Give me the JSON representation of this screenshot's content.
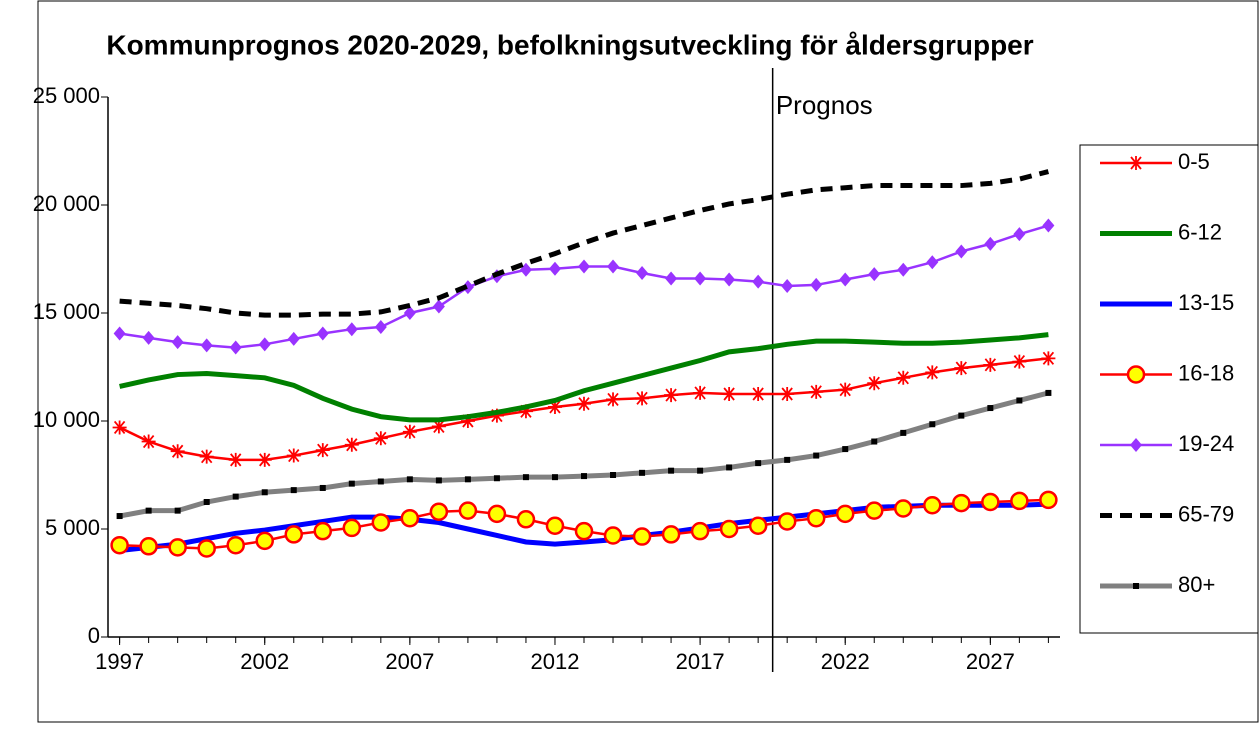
{
  "chart_data": {
    "type": "line",
    "title": "Kommunprognos 2020-2029, befolkningsutveckling för åldersgrupper",
    "x": [
      1997,
      1998,
      1999,
      2000,
      2001,
      2002,
      2003,
      2004,
      2005,
      2006,
      2007,
      2008,
      2009,
      2010,
      2011,
      2012,
      2013,
      2014,
      2015,
      2016,
      2017,
      2018,
      2019,
      2020,
      2021,
      2022,
      2023,
      2024,
      2025,
      2026,
      2027,
      2028,
      2029
    ],
    "xlim": [
      1996.6,
      2029.4
    ],
    "xticks": [
      1997,
      2002,
      2007,
      2012,
      2017,
      2022,
      2027
    ],
    "ylim": [
      0,
      25000
    ],
    "yticks": [
      0,
      {
        "value": 5000,
        "label": "5 000"
      },
      {
        "value": 10000,
        "label": "10 000"
      },
      {
        "value": 15000,
        "label": "15 000"
      },
      {
        "value": 20000,
        "label": "20 000"
      },
      {
        "value": 25000,
        "label": "25 000"
      }
    ],
    "legend": "right",
    "annotation": {
      "x": 2019.5,
      "label": "Prognos"
    },
    "series": [
      {
        "name": "0-5",
        "color": "#ff0000",
        "marker": "asterisk",
        "values": [
          9700,
          9050,
          8600,
          8350,
          8200,
          8200,
          8400,
          8650,
          8900,
          9200,
          9500,
          9750,
          10000,
          10250,
          10450,
          10650,
          10800,
          11000,
          11050,
          11200,
          11300,
          11250,
          11250,
          11250,
          11350,
          11450,
          11750,
          12000,
          12250,
          12450,
          12600,
          12750,
          12900
        ]
      },
      {
        "name": "6-12",
        "color": "#008000",
        "marker": "none",
        "values": [
          11600,
          11900,
          12150,
          12200,
          12100,
          12000,
          11650,
          11050,
          10550,
          10200,
          10050,
          10050,
          10200,
          10400,
          10650,
          10950,
          11400,
          11750,
          12100,
          12450,
          12800,
          13200,
          13350,
          13550,
          13700,
          13700,
          13650,
          13600,
          13600,
          13650,
          13750,
          13850,
          14000
        ]
      },
      {
        "name": "13-15",
        "color": "#0000ff",
        "marker": "none",
        "values": [
          4000,
          4150,
          4300,
          4550,
          4800,
          4950,
          5150,
          5350,
          5550,
          5550,
          5450,
          5300,
          5000,
          4700,
          4400,
          4300,
          4400,
          4500,
          4700,
          4850,
          5050,
          5250,
          5400,
          5550,
          5700,
          5850,
          6000,
          6050,
          6100,
          6100,
          6100,
          6100,
          6150
        ]
      },
      {
        "name": "16-18",
        "color": "#ff0000",
        "marker": "circle",
        "marker_fill": "#ffff00",
        "values": [
          4250,
          4200,
          4150,
          4100,
          4250,
          4450,
          4750,
          4900,
          5050,
          5300,
          5500,
          5800,
          5850,
          5700,
          5450,
          5150,
          4900,
          4700,
          4650,
          4750,
          4900,
          5000,
          5150,
          5350,
          5500,
          5700,
          5850,
          5950,
          6100,
          6200,
          6250,
          6300,
          6350
        ]
      },
      {
        "name": "19-24",
        "color": "#9933ff",
        "marker": "diamond",
        "values": [
          14050,
          13850,
          13650,
          13500,
          13400,
          13550,
          13800,
          14050,
          14250,
          14350,
          15000,
          15300,
          16200,
          16700,
          17000,
          17050,
          17150,
          17150,
          16850,
          16600,
          16600,
          16550,
          16450,
          16250,
          16300,
          16550,
          16800,
          17000,
          17350,
          17850,
          18200,
          18650,
          19050
        ]
      },
      {
        "name": "65-79",
        "color": "#000000",
        "marker": "none",
        "dash": true,
        "values": [
          15550,
          15450,
          15350,
          15200,
          15000,
          14900,
          14900,
          14950,
          14950,
          15050,
          15350,
          15700,
          16250,
          16800,
          17300,
          17750,
          18250,
          18700,
          19050,
          19400,
          19750,
          20050,
          20250,
          20500,
          20700,
          20800,
          20900,
          20900,
          20900,
          20900,
          21000,
          21200,
          21550
        ]
      },
      {
        "name": "80+",
        "color": "#808080",
        "marker": "square",
        "marker_fill": "#000000",
        "values": [
          5600,
          5850,
          5850,
          6250,
          6500,
          6700,
          6800,
          6900,
          7100,
          7200,
          7300,
          7250,
          7300,
          7350,
          7400,
          7400,
          7450,
          7500,
          7600,
          7700,
          7700,
          7850,
          8050,
          8200,
          8400,
          8700,
          9050,
          9450,
          9850,
          10250,
          10600,
          10950,
          11300
        ]
      }
    ]
  }
}
